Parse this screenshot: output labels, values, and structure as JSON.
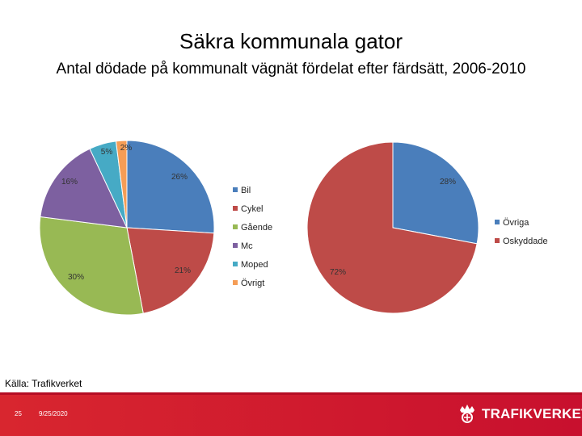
{
  "slide": {
    "title": "Säkra kommunala gator",
    "subtitle": "Antal dödade på kommunalt vägnät fördelat efter färdsätt, 2006-2010",
    "source": "Källa: Trafikverket",
    "slide_number": "25",
    "date": "9/25/2020",
    "brand": "TRAFIKVERKET"
  },
  "colors": {
    "footer": "#d0202a",
    "bil": "#4a7ebb",
    "cykel": "#be4b48",
    "gaende": "#98b954",
    "mc": "#7d60a0",
    "moped": "#46aac5",
    "ovrigt": "#f59d56"
  },
  "chart_data": [
    {
      "type": "pie",
      "slices": [
        {
          "label": "Bil",
          "value": 26,
          "display": "26%",
          "color": "#4a7ebb"
        },
        {
          "label": "Cykel",
          "value": 21,
          "display": "21%",
          "color": "#be4b48"
        },
        {
          "label": "Gående",
          "value": 30,
          "display": "30%",
          "color": "#98b954"
        },
        {
          "label": "Mc",
          "value": 16,
          "display": "16%",
          "color": "#7d60a0"
        },
        {
          "label": "Moped",
          "value": 5,
          "display": "5%",
          "color": "#46aac5"
        },
        {
          "label": "Övrigt",
          "value": 2,
          "display": "2%",
          "color": "#f59d56"
        }
      ],
      "legend": "right"
    },
    {
      "type": "pie",
      "slices": [
        {
          "label": "Övriga",
          "value": 28,
          "display": "28%",
          "color": "#4a7ebb"
        },
        {
          "label": "Oskyddade",
          "value": 72,
          "display": "72%",
          "color": "#be4b48"
        }
      ],
      "legend": "right"
    }
  ]
}
